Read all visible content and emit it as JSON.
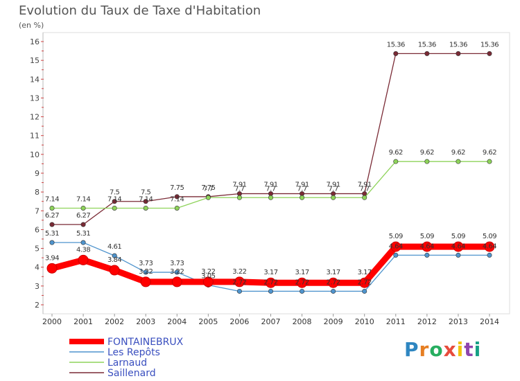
{
  "chart_data": {
    "type": "line",
    "title": "Evolution du Taux de Taxe d'Habitation",
    "subtitle": "(en %)",
    "x": [
      "2000",
      "2001",
      "2002",
      "2003",
      "2004",
      "2005",
      "2006",
      "2007",
      "2008",
      "2009",
      "2010",
      "2011",
      "2012",
      "2013",
      "2014"
    ],
    "y_ticks": [
      "2",
      "3",
      "4",
      "5",
      "6",
      "7",
      "8",
      "9",
      "10",
      "11",
      "12",
      "13",
      "14",
      "15",
      "16"
    ],
    "ylim": [
      2,
      16
    ],
    "grid": false,
    "legend_position": "bottom-left",
    "series": [
      {
        "name": "FONTAINEBRUX",
        "color": "#ff0000",
        "values": [
          3.94,
          4.38,
          3.84,
          3.22,
          3.22,
          3.22,
          3.22,
          3.17,
          3.17,
          3.17,
          3.17,
          5.09,
          5.09,
          5.09,
          5.09
        ],
        "labels": [
          "3.94",
          "4.38",
          "3.84",
          "3.22",
          "3.22",
          "3.22",
          "3.22",
          "3.17",
          "3.17",
          "3.17",
          "3.17",
          "5.09",
          "5.09",
          "5.09",
          "5.09"
        ]
      },
      {
        "name": "Les Repôts",
        "color": "#4f94cd",
        "values": [
          5.31,
          5.31,
          4.61,
          3.73,
          3.73,
          3.05,
          2.72,
          2.72,
          2.72,
          2.72,
          2.72,
          4.64,
          4.64,
          4.64,
          4.64
        ],
        "labels": [
          "5.31",
          "5.31",
          "4.61",
          "3.73",
          "3.73",
          "3.05",
          "2.72",
          "2.72",
          "2.72",
          "2.72",
          "2.72",
          "4.64",
          "4.64",
          "4.64",
          "4.64"
        ]
      },
      {
        "name": "Larnaud",
        "color": "#8ed35a",
        "values": [
          7.14,
          7.14,
          7.14,
          7.14,
          7.14,
          7.7,
          7.7,
          7.7,
          7.7,
          7.7,
          7.7,
          9.62,
          9.62,
          9.62,
          9.62
        ],
        "labels": [
          "7.14",
          "7.14",
          "7.14",
          "7.14",
          "7.14",
          "7.7",
          "7.7",
          "7.7",
          "7.7",
          "7.7",
          "7.7",
          "9.62",
          "9.62",
          "9.62",
          "9.62"
        ]
      },
      {
        "name": "Saillenard",
        "color": "#7a2a35",
        "values": [
          6.27,
          6.27,
          7.5,
          7.5,
          7.75,
          7.75,
          7.91,
          7.91,
          7.91,
          7.91,
          7.91,
          15.36,
          15.36,
          15.36,
          15.36
        ],
        "labels": [
          "6.27",
          "6.27",
          "7.5",
          "7.5",
          "7.75",
          "7.75",
          "7.91",
          "7.91",
          "7.91",
          "7.91",
          "7.91",
          "15.36",
          "15.36",
          "15.36",
          "15.36"
        ]
      }
    ]
  },
  "logo": {
    "text": "Proxiti",
    "letters": [
      "P",
      "r",
      "o",
      "x",
      "i",
      "t",
      "i"
    ],
    "colors": [
      "#2e86c1",
      "#e67e22",
      "#27ae60",
      "#e74c3c",
      "#f1c40f",
      "#8e44ad",
      "#16a085"
    ]
  }
}
